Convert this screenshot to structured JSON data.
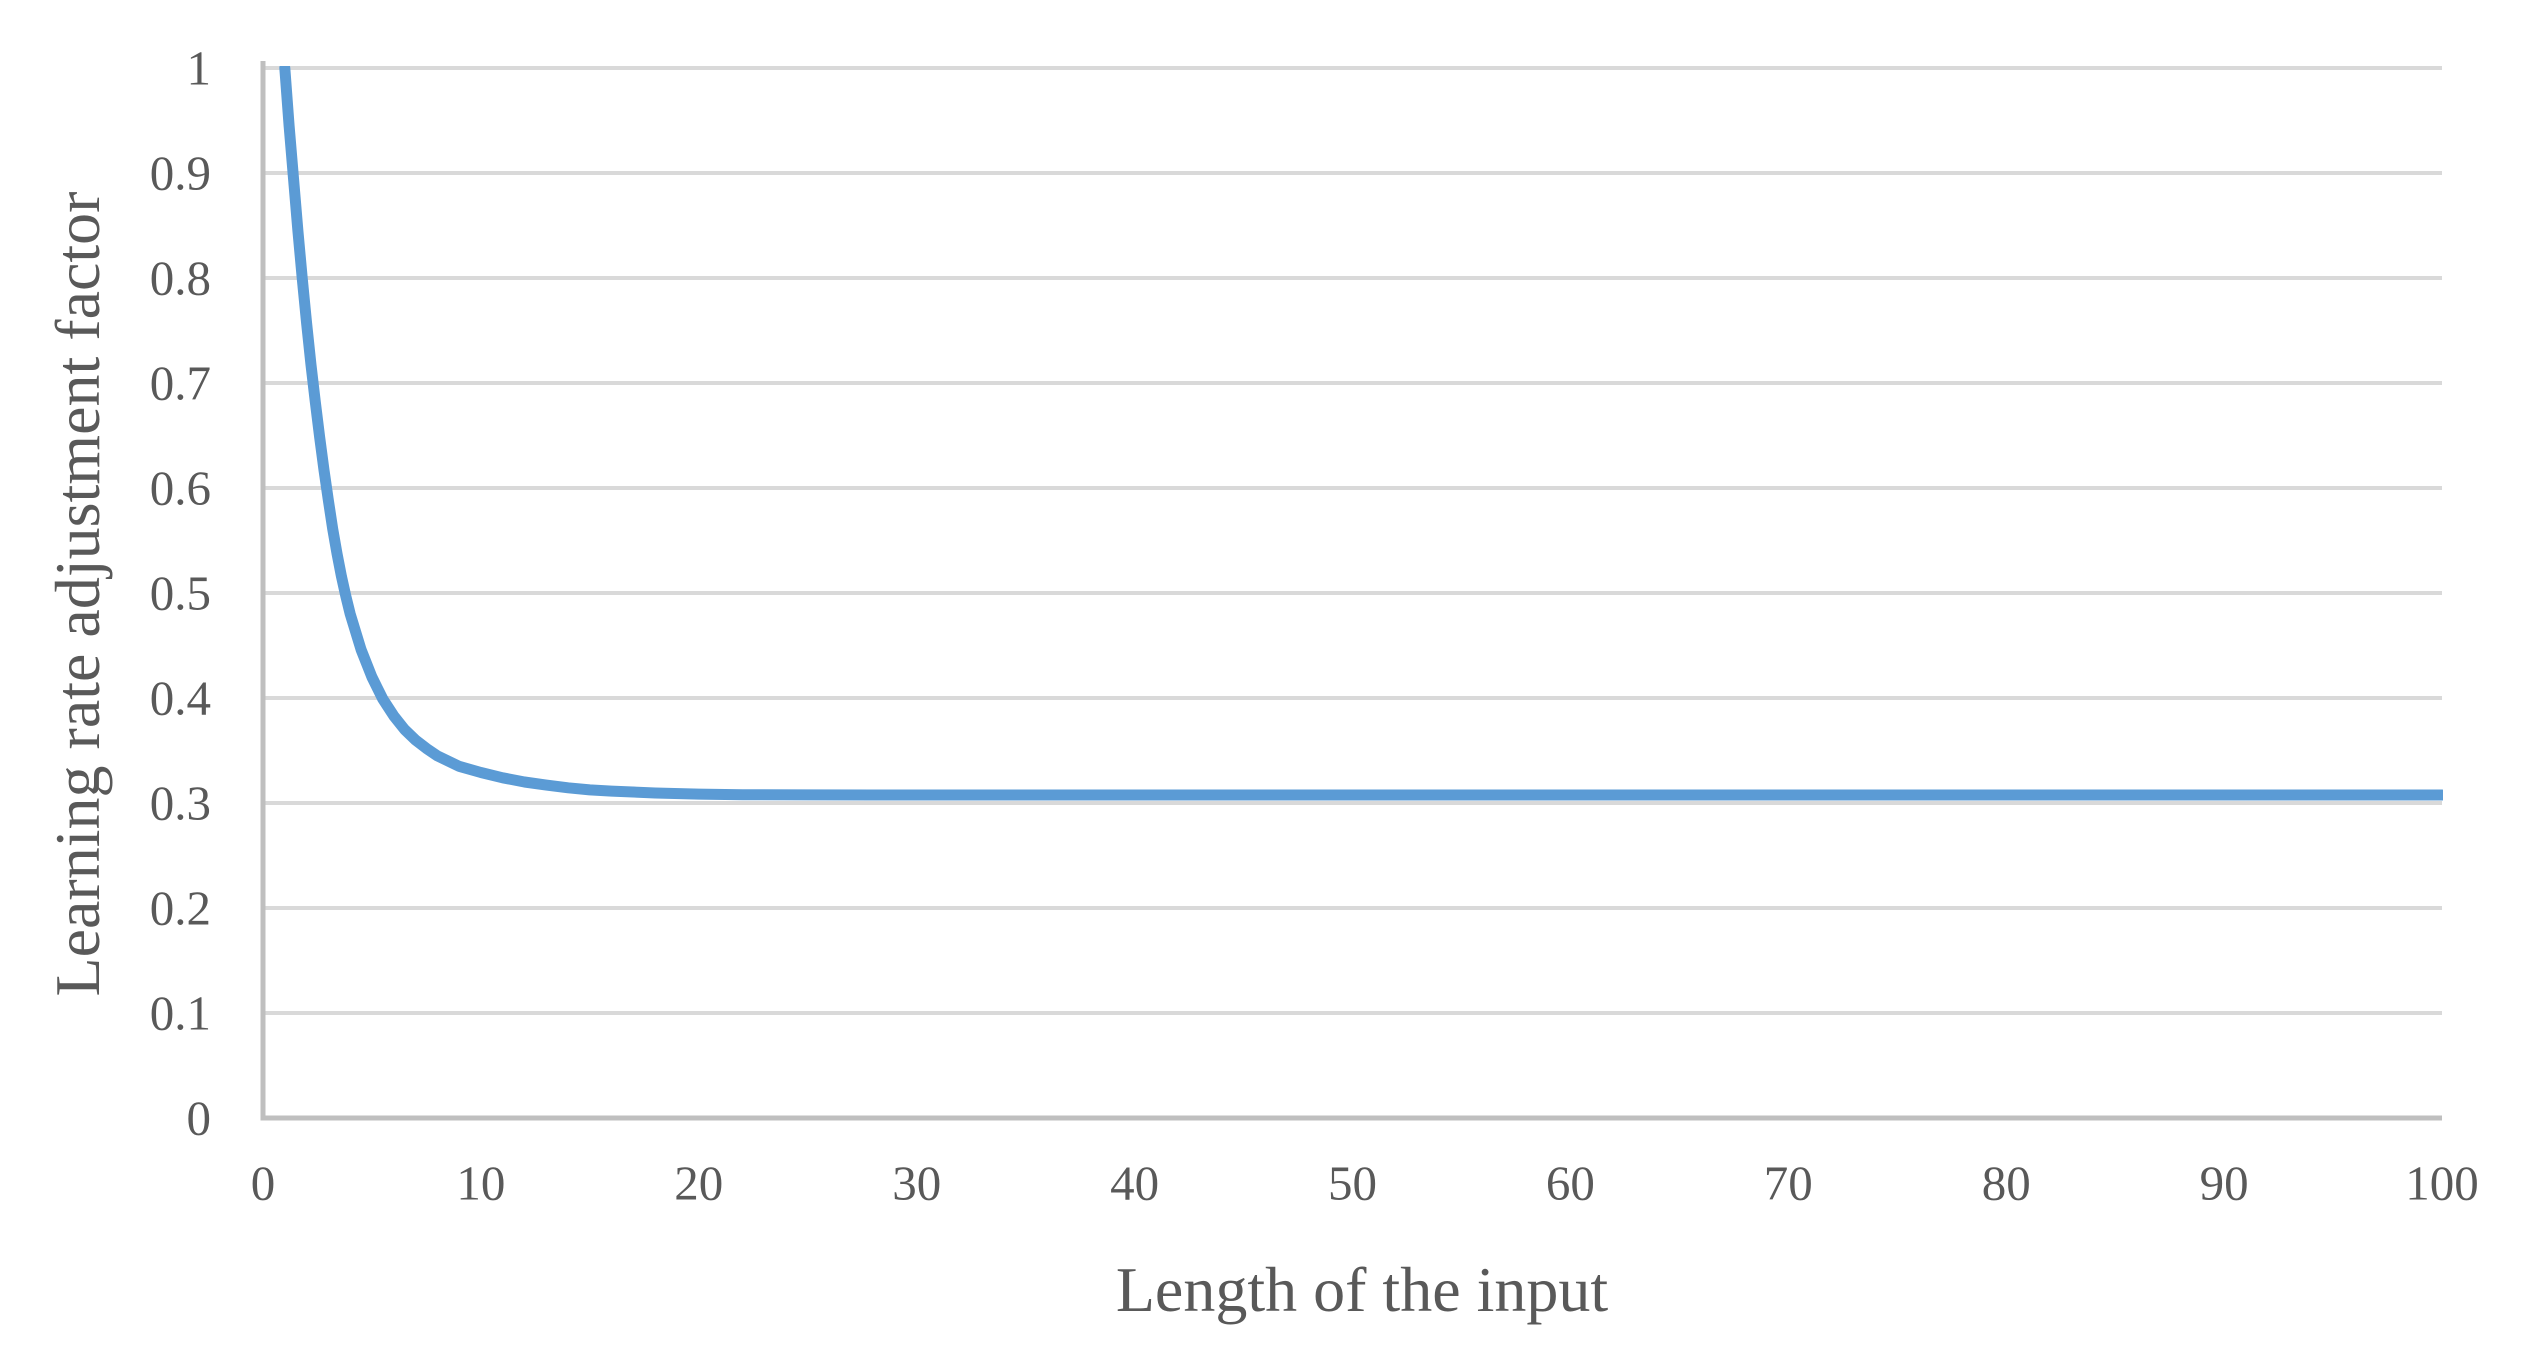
{
  "chart_data": {
    "type": "line",
    "title": "",
    "xlabel": "Length of the input",
    "ylabel": "Learning rate adjustment factor",
    "xlim": [
      0,
      100
    ],
    "ylim": [
      0,
      1
    ],
    "x_ticks": [
      0,
      10,
      20,
      30,
      40,
      50,
      60,
      70,
      80,
      90,
      100
    ],
    "x_tick_labels": [
      "0",
      "10",
      "20",
      "30",
      "40",
      "50",
      "60",
      "70",
      "80",
      "90",
      "100"
    ],
    "y_ticks": [
      0,
      0.1,
      0.2,
      0.3,
      0.4,
      0.5,
      0.6,
      0.7,
      0.8,
      0.9,
      1
    ],
    "y_tick_labels": [
      "0",
      "0.1",
      "0.2",
      "0.3",
      "0.4",
      "0.5",
      "0.6",
      "0.7",
      "0.8",
      "0.9",
      "1"
    ],
    "grid": "horizontal",
    "legend": "none",
    "series": [
      {
        "name": "Learning rate adjustment factor",
        "color": "#5B9BD5",
        "asymptote": 0.308,
        "x": [
          1,
          1.2,
          1.4,
          1.6,
          1.8,
          2,
          2.2,
          2.4,
          2.6,
          2.8,
          3,
          3.2,
          3.4,
          3.6,
          3.8,
          4,
          4.5,
          5,
          5.5,
          6,
          6.5,
          7,
          7.5,
          8,
          9,
          10,
          11,
          12,
          13,
          14,
          15,
          16,
          18,
          20,
          22,
          25,
          28,
          30,
          35,
          40,
          45,
          50,
          60,
          70,
          80,
          90,
          100
        ],
        "y": [
          1.0,
          0.945,
          0.895,
          0.845,
          0.8,
          0.757,
          0.718,
          0.682,
          0.648,
          0.617,
          0.588,
          0.561,
          0.537,
          0.516,
          0.497,
          0.48,
          0.446,
          0.42,
          0.399,
          0.383,
          0.37,
          0.36,
          0.352,
          0.345,
          0.335,
          0.329,
          0.324,
          0.32,
          0.317,
          0.3145,
          0.3125,
          0.3113,
          0.3095,
          0.3085,
          0.3079,
          0.3077,
          0.3076,
          0.3076,
          0.3076,
          0.3076,
          0.3076,
          0.3076,
          0.3076,
          0.3076,
          0.3076,
          0.3076,
          0.3076
        ]
      }
    ]
  },
  "colors": {
    "line": "#5B9BD5",
    "gridline": "#D9D9D9",
    "axis_line": "#BFBFBF",
    "text": "#595959",
    "background": "#FFFFFF"
  }
}
